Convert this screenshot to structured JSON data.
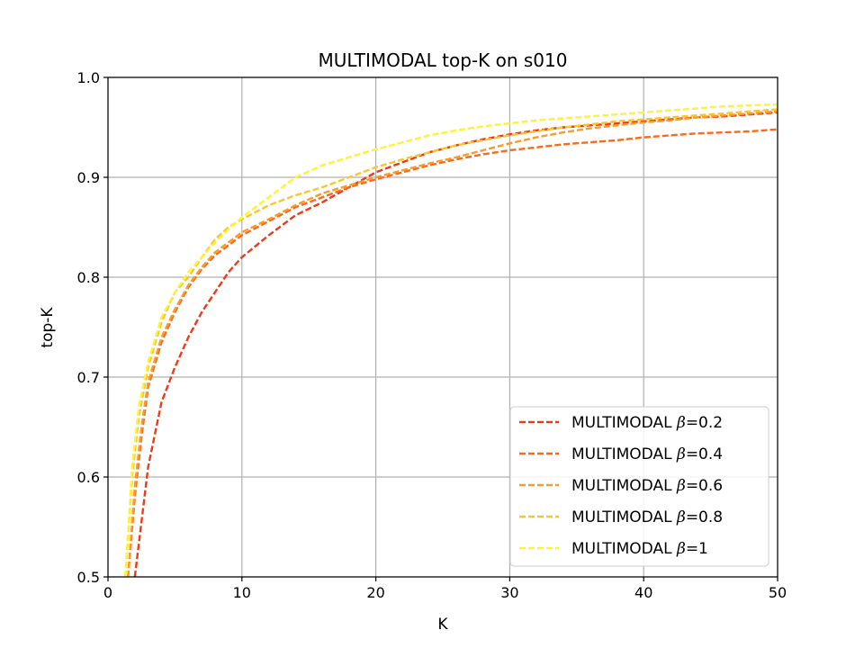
{
  "chart_data": {
    "type": "line",
    "title": "MULTIMODAL top-K on s010",
    "xlabel": "K",
    "ylabel": "top-K",
    "xlim": [
      0,
      50
    ],
    "ylim": [
      0.5,
      1.0
    ],
    "xticks": [
      0,
      10,
      20,
      30,
      40,
      50
    ],
    "xtick_labels": [
      "0",
      "10",
      "20",
      "30",
      "40",
      "50"
    ],
    "yticks": [
      0.5,
      0.6,
      0.7,
      0.8,
      0.9,
      1.0
    ],
    "ytick_labels": [
      "0.5",
      "0.6",
      "0.7",
      "0.8",
      "0.9",
      "1.0"
    ],
    "grid": true,
    "legend_position": "lower-right",
    "line_style": "dashed",
    "series": [
      {
        "name": "MULTIMODAL β=0.2",
        "label_prefix": "MULTIMODAL ",
        "label_symbol": "β",
        "label_suffix": "=0.2",
        "color": "#f03a17",
        "x": [
          2,
          2.5,
          3,
          4,
          5,
          6,
          7,
          8,
          9,
          10,
          12,
          14,
          16,
          18,
          20,
          22,
          24,
          26,
          28,
          30,
          32,
          34,
          36,
          38,
          40,
          42,
          44,
          46,
          48,
          50
        ],
        "y": [
          0.5,
          0.555,
          0.61,
          0.675,
          0.71,
          0.74,
          0.765,
          0.785,
          0.805,
          0.82,
          0.842,
          0.862,
          0.875,
          0.89,
          0.905,
          0.915,
          0.925,
          0.932,
          0.938,
          0.943,
          0.947,
          0.95,
          0.952,
          0.954,
          0.956,
          0.958,
          0.96,
          0.961,
          0.963,
          0.965
        ]
      },
      {
        "name": "MULTIMODAL β=0.4",
        "label_prefix": "MULTIMODAL ",
        "label_symbol": "β",
        "label_suffix": "=0.4",
        "color": "#fa6a1c",
        "x": [
          1.5,
          2,
          2.5,
          3,
          4,
          5,
          6,
          7,
          8,
          9,
          10,
          12,
          14,
          16,
          18,
          20,
          22,
          24,
          26,
          28,
          30,
          32,
          34,
          36,
          38,
          40,
          42,
          44,
          46,
          48,
          50
        ],
        "y": [
          0.5,
          0.58,
          0.64,
          0.69,
          0.735,
          0.765,
          0.79,
          0.808,
          0.822,
          0.832,
          0.842,
          0.856,
          0.87,
          0.88,
          0.89,
          0.898,
          0.905,
          0.912,
          0.918,
          0.923,
          0.927,
          0.93,
          0.933,
          0.935,
          0.937,
          0.94,
          0.942,
          0.944,
          0.945,
          0.946,
          0.948
        ]
      },
      {
        "name": "MULTIMODAL β=0.6",
        "label_prefix": "MULTIMODAL ",
        "label_symbol": "β",
        "label_suffix": "=0.6",
        "color": "#fb9a28",
        "x": [
          1.5,
          2,
          2.5,
          3,
          4,
          5,
          6,
          7,
          8,
          9,
          10,
          12,
          14,
          16,
          18,
          20,
          22,
          24,
          26,
          28,
          30,
          32,
          34,
          36,
          38,
          40,
          42,
          44,
          46,
          48,
          50
        ],
        "y": [
          0.5,
          0.59,
          0.65,
          0.695,
          0.74,
          0.768,
          0.792,
          0.81,
          0.825,
          0.835,
          0.845,
          0.858,
          0.872,
          0.884,
          0.892,
          0.9,
          0.907,
          0.914,
          0.92,
          0.927,
          0.934,
          0.94,
          0.945,
          0.949,
          0.952,
          0.955,
          0.957,
          0.96,
          0.962,
          0.964,
          0.966
        ]
      },
      {
        "name": "MULTIMODAL β=0.8",
        "label_prefix": "MULTIMODAL ",
        "label_symbol": "β",
        "label_suffix": "=0.8",
        "color": "#fcc52c",
        "x": [
          1.3,
          1.8,
          2.3,
          3,
          4,
          5,
          6,
          7,
          8,
          9,
          10,
          12,
          14,
          16,
          18,
          20,
          22,
          24,
          26,
          28,
          30,
          32,
          34,
          36,
          38,
          40,
          42,
          44,
          46,
          48,
          50
        ],
        "y": [
          0.5,
          0.6,
          0.66,
          0.71,
          0.755,
          0.785,
          0.8,
          0.82,
          0.838,
          0.85,
          0.858,
          0.872,
          0.882,
          0.89,
          0.9,
          0.91,
          0.918,
          0.925,
          0.932,
          0.937,
          0.942,
          0.946,
          0.95,
          0.953,
          0.956,
          0.958,
          0.96,
          0.962,
          0.964,
          0.966,
          0.968
        ]
      },
      {
        "name": "MULTIMODAL β=1",
        "label_prefix": "MULTIMODAL ",
        "label_symbol": "β",
        "label_suffix": "=1",
        "color": "#fff23a",
        "x": [
          1.3,
          1.8,
          2.3,
          3,
          4,
          5,
          6,
          7,
          8,
          9,
          10,
          12,
          14,
          16,
          18,
          20,
          22,
          24,
          26,
          28,
          30,
          32,
          34,
          36,
          38,
          40,
          42,
          44,
          46,
          48,
          50
        ],
        "y": [
          0.5,
          0.61,
          0.67,
          0.715,
          0.76,
          0.785,
          0.805,
          0.82,
          0.835,
          0.848,
          0.86,
          0.88,
          0.9,
          0.912,
          0.92,
          0.928,
          0.935,
          0.942,
          0.947,
          0.951,
          0.954,
          0.957,
          0.959,
          0.961,
          0.963,
          0.965,
          0.967,
          0.969,
          0.971,
          0.972,
          0.973
        ]
      }
    ]
  }
}
